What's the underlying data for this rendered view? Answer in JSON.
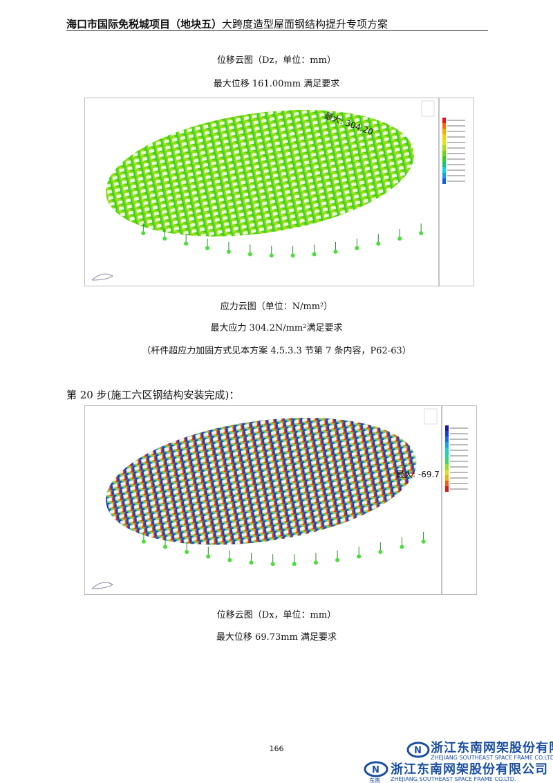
{
  "header": {
    "title_bold": "海口市国际免税城项目（地块五）",
    "title_rest": "大跨度造型屋面钢结构提升专项方案"
  },
  "section1": {
    "caption_top": "位移云图（Dz，单位：mm）",
    "result_top": "最大位移 161.00mm 满足要求",
    "figure": {
      "annotation": "最大: 304.20",
      "colormap": [
        "#e8141b",
        "#f26b12",
        "#f7a80e",
        "#f2d20a",
        "#d8e81a",
        "#a8de18",
        "#6ad81a",
        "#2fd02a",
        "#16c87a",
        "#10d8d8",
        "#1a9cf0",
        "#1660e0"
      ]
    },
    "caption": "应力云图（单位：N/mm²）",
    "result": "最大应力 304.2N/mm²满足要求",
    "note": "（杆件超应力加固方式见本方案 4.5.3.3 节第 7 条内容，P62-63）"
  },
  "section2": {
    "heading": "第 20 步(施工六区钢结构安装完成)：",
    "figure": {
      "annotation": "最大: -69.7",
      "colormap": [
        "#1a1aa0",
        "#1a3ad0",
        "#1a6ae8",
        "#18a0e8",
        "#18d0d0",
        "#20d8a0",
        "#40d860",
        "#90e030",
        "#d8e020",
        "#f0b010",
        "#f06010",
        "#e01818"
      ]
    },
    "caption": "位移云图（Dx，单位：mm）",
    "result": "最大位移 69.73mm 满足要求"
  },
  "footer": {
    "page_number": "166",
    "company_cn": "浙江东南网架股份有限公司",
    "company_en": "ZHEJIANG SOUTHEAST SPACE FRAME CO.LTD.",
    "logo_text": "东南"
  }
}
